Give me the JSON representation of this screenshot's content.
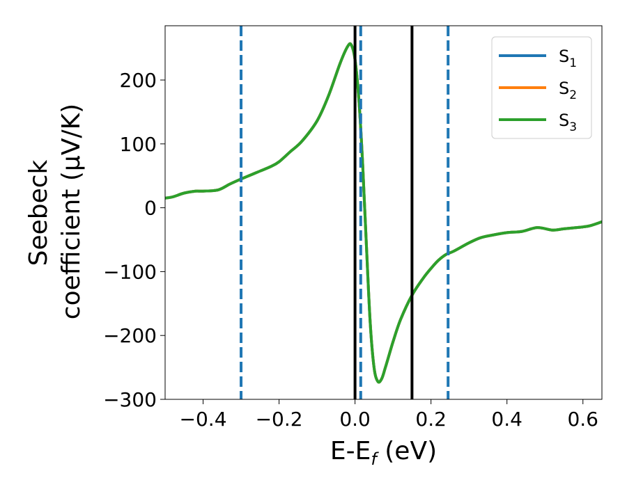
{
  "chart_data": {
    "type": "line",
    "xlabel": {
      "main": "E-E",
      "sub": "f",
      "unit": " (eV)"
    },
    "ylabel": {
      "line1": "Seebeck",
      "line2": "coefficient  (μV/K)"
    },
    "xlim": [
      -0.5,
      0.65
    ],
    "ylim": [
      -300,
      285
    ],
    "xticks": [
      -0.4,
      -0.2,
      0.0,
      0.2,
      0.4,
      0.6
    ],
    "xtick_labels": [
      "−0.4",
      "−0.2",
      "0.0",
      "0.2",
      "0.4",
      "0.6"
    ],
    "yticks": [
      -300,
      -200,
      -100,
      0,
      100,
      200
    ],
    "ytick_labels": [
      "−300",
      "−200",
      "−100",
      "0",
      "100",
      "200"
    ],
    "grid": false,
    "legend_position": "top-right",
    "x": [
      -0.5,
      -0.48,
      -0.45,
      -0.42,
      -0.4,
      -0.36,
      -0.33,
      -0.3,
      -0.26,
      -0.22,
      -0.2,
      -0.17,
      -0.14,
      -0.1,
      -0.07,
      -0.04,
      -0.02,
      -0.01,
      0.0,
      0.01,
      0.02,
      0.03,
      0.04,
      0.05,
      0.06,
      0.07,
      0.08,
      0.1,
      0.12,
      0.15,
      0.18,
      0.2,
      0.22,
      0.24,
      0.26,
      0.3,
      0.33,
      0.36,
      0.4,
      0.44,
      0.48,
      0.52,
      0.55,
      0.6,
      0.62,
      0.65
    ],
    "series": [
      {
        "name": "S1",
        "label_main": "S",
        "label_sub": "1",
        "color": "#1f77b4",
        "values": [
          15,
          17,
          23,
          26,
          26,
          28,
          37,
          45,
          55,
          65,
          72,
          88,
          104,
          136,
          175,
          225,
          252,
          255,
          232,
          170,
          70,
          -60,
          -180,
          -250,
          -272,
          -268,
          -250,
          -210,
          -175,
          -137,
          -110,
          -95,
          -82,
          -73,
          -68,
          -55,
          -47,
          -43,
          -39,
          -37,
          -31,
          -35,
          -33,
          -30,
          -28,
          -22
        ]
      },
      {
        "name": "S2",
        "label_main": "S",
        "label_sub": "2",
        "color": "#ff7f0e",
        "values": [
          15,
          17,
          23,
          26,
          26,
          28,
          37,
          45,
          55,
          65,
          72,
          88,
          104,
          136,
          175,
          225,
          252,
          255,
          232,
          170,
          70,
          -60,
          -180,
          -250,
          -272,
          -268,
          -250,
          -210,
          -175,
          -137,
          -110,
          -95,
          -82,
          -73,
          -68,
          -55,
          -47,
          -43,
          -39,
          -37,
          -31,
          -35,
          -33,
          -30,
          -28,
          -22
        ]
      },
      {
        "name": "S3",
        "label_main": "S",
        "label_sub": "3",
        "color": "#2ca02c",
        "values": [
          15,
          17,
          23,
          26,
          26,
          28,
          37,
          45,
          55,
          65,
          72,
          88,
          104,
          136,
          175,
          225,
          252,
          255,
          232,
          170,
          70,
          -60,
          -180,
          -250,
          -272,
          -268,
          -250,
          -210,
          -175,
          -137,
          -110,
          -95,
          -82,
          -73,
          -68,
          -55,
          -47,
          -43,
          -39,
          -37,
          -31,
          -35,
          -33,
          -30,
          -28,
          -22
        ]
      }
    ],
    "vlines_solid": {
      "color": "#000000",
      "x": [
        0.0,
        0.15
      ]
    },
    "vlines_dashed": {
      "color": "#1f77b4",
      "x": [
        -0.3,
        0.015,
        0.245
      ]
    }
  }
}
